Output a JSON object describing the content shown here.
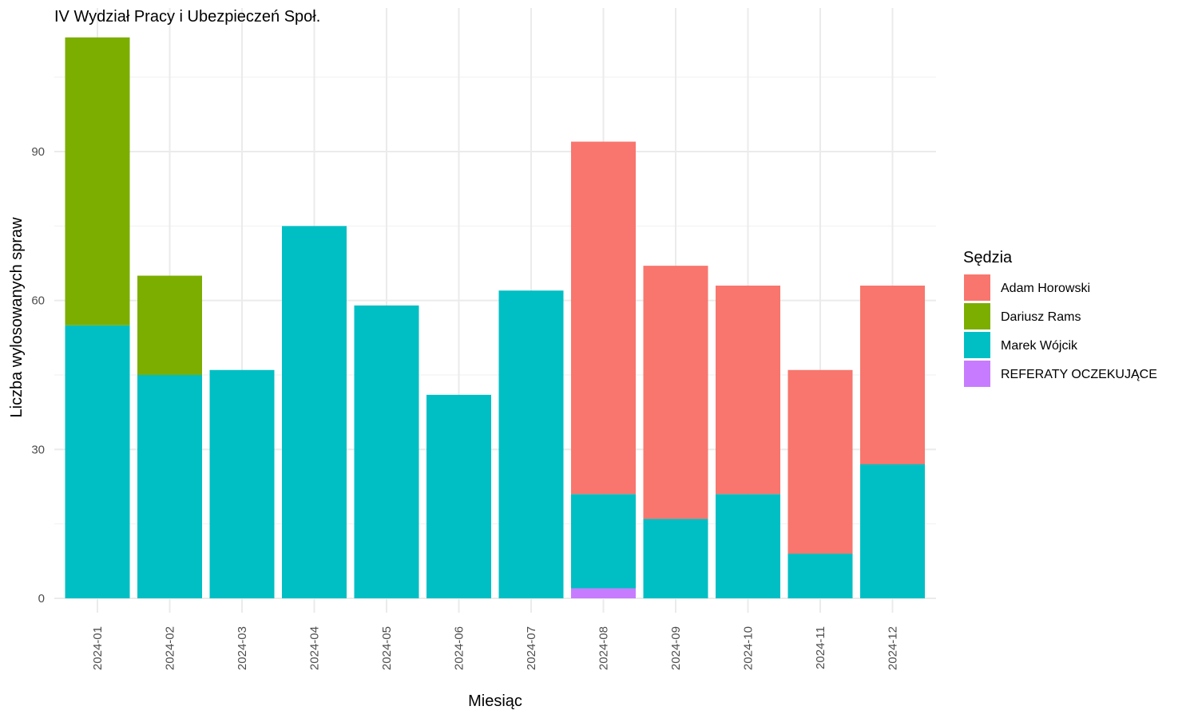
{
  "chart_data": {
    "type": "bar",
    "stacked": true,
    "title": "IV Wydział Pracy i Ubezpieczeń Społ.",
    "xlabel": "Miesiąc",
    "ylabel": "Liczba wylosowanych spraw",
    "ylim": [
      0,
      118
    ],
    "yticks": [
      0,
      30,
      60,
      90
    ],
    "grid": true,
    "legend_position": "right",
    "legend_title": "Sędzia",
    "categories": [
      "2024-01",
      "2024-02",
      "2024-03",
      "2024-04",
      "2024-05",
      "2024-06",
      "2024-07",
      "2024-08",
      "2024-09",
      "2024-10",
      "2024-11",
      "2024-12"
    ],
    "series": [
      {
        "name": "REFERATY OCZEKUJĄCE",
        "color": "#C77CFF",
        "values": [
          0,
          0,
          0,
          0,
          0,
          0,
          0,
          2,
          0,
          0,
          0,
          0
        ]
      },
      {
        "name": "Marek Wójcik",
        "color": "#00BFC4",
        "values": [
          55,
          45,
          46,
          75,
          59,
          41,
          62,
          19,
          16,
          21,
          9,
          27
        ]
      },
      {
        "name": "Dariusz Rams",
        "color": "#7CAE00",
        "values": [
          58,
          20,
          0,
          0,
          0,
          0,
          0,
          0,
          0,
          0,
          0,
          0
        ]
      },
      {
        "name": "Adam Horowski",
        "color": "#F8766D",
        "values": [
          0,
          0,
          0,
          0,
          0,
          0,
          0,
          71,
          51,
          42,
          37,
          36
        ]
      }
    ],
    "legend_order": [
      "Adam Horowski",
      "Dariusz Rams",
      "Marek Wójcik",
      "REFERATY OCZEKUJĄCE"
    ]
  }
}
